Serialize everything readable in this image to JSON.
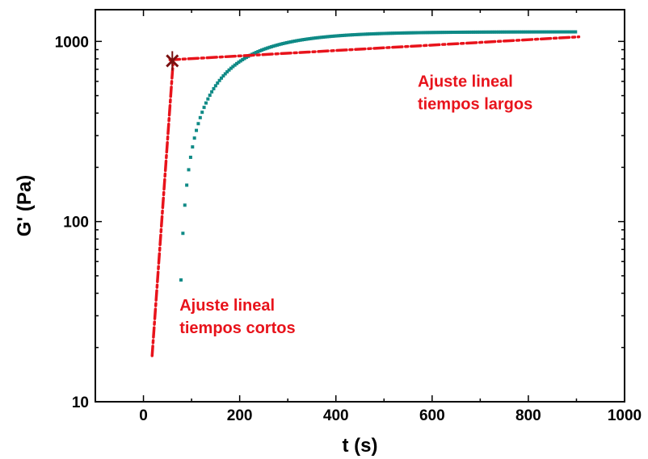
{
  "chart_data": {
    "type": "line",
    "xlabel": "t (s)",
    "ylabel": "G' (Pa)",
    "xlim": [
      -100,
      1000
    ],
    "ylim": [
      10,
      1500
    ],
    "yscale": "log",
    "grid": false,
    "xticks": [
      0,
      200,
      400,
      600,
      800,
      1000
    ],
    "yticks": [
      10,
      100,
      1000
    ],
    "x_tick_labels": [
      "0",
      "200",
      "400",
      "600",
      "800",
      "1000"
    ],
    "y_tick_labels": [
      "10",
      "100",
      "1000"
    ],
    "colors": {
      "data": "#0f8a86",
      "fit": "#e8131b",
      "cross": "#7a1010"
    },
    "series": [
      {
        "kind": "measured",
        "x_start": 18,
        "x_end": 900,
        "x_step": 4,
        "model": "G(t) = 1130 - 2200*exp(-t/110)"
      },
      {
        "kind": "fit-short-times",
        "x": [
          18,
          62
        ],
        "y": [
          18,
          790
        ]
      },
      {
        "kind": "fit-long-times",
        "x": [
          55,
          905
        ],
        "y": [
          790,
          1060
        ]
      }
    ],
    "intersection": {
      "x": 60,
      "y": 780
    },
    "annotations": [
      {
        "lines": [
          "Ajuste lineal",
          "tiempos largos"
        ],
        "x": 570,
        "y": 560
      },
      {
        "lines": [
          "Ajuste lineal",
          "tiempos cortos"
        ],
        "x": 75,
        "y": 32
      }
    ]
  }
}
